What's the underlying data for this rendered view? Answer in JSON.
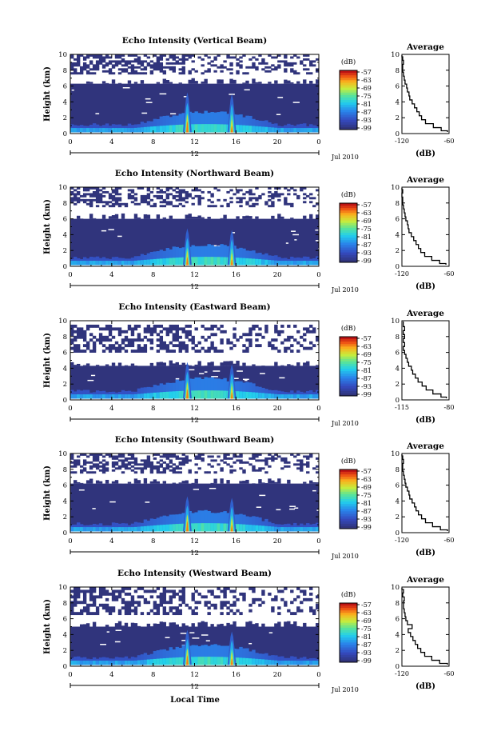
{
  "figure": {
    "xlabel": "Local Time"
  },
  "chart_data": [
    {
      "type": "heatmap",
      "title": "Echo Intensity (Vertical Beam)",
      "ylabel": "Height (km)",
      "ylim": [
        0,
        10
      ],
      "yticks": [
        "0",
        "2",
        "4",
        "6",
        "8",
        "10"
      ],
      "xlim": [
        0,
        24
      ],
      "xticks": [
        "0",
        "4",
        "8",
        "12",
        "16",
        "20",
        "0"
      ],
      "date_marker": "12",
      "date_label": "Jul 2010",
      "colorbar": {
        "unit": "(dB)",
        "ticks": [
          "-57",
          "-63",
          "-69",
          "-75",
          "-81",
          "-87",
          "-93",
          "-99"
        ]
      },
      "bursts": [
        {
          "time": 11.3,
          "top_km": 5.2,
          "core_km": 1.6
        },
        {
          "time": 15.6,
          "top_km": 5.0,
          "core_km": 1.0
        }
      ],
      "echo_top_km": 6.3,
      "upper_echo_km": [
        7.5,
        10.0
      ],
      "profile": {
        "title": "Average",
        "xlabel": "(dB)",
        "xlim": [
          -120,
          -60
        ],
        "xticks": [
          "-120",
          "-60"
        ],
        "ylim": [
          0,
          10
        ],
        "yticks": [
          "0",
          "2",
          "4",
          "6",
          "8",
          "10"
        ],
        "height_km": [
          0.2,
          0.5,
          1.0,
          1.5,
          2.0,
          2.5,
          3.0,
          3.5,
          4.0,
          4.5,
          5.0,
          5.5,
          6.0,
          6.5,
          7.0,
          7.5,
          8.0,
          8.5,
          9.0,
          9.5,
          9.9
        ],
        "value_db": [
          -62,
          -70,
          -80,
          -90,
          -95,
          -98,
          -101,
          -104,
          -107,
          -110,
          -111,
          -113,
          -114,
          -116,
          -117,
          -118,
          -119,
          -119,
          -118,
          -119,
          -120
        ]
      }
    },
    {
      "type": "heatmap",
      "title": "Echo Intensity (Northward Beam)",
      "ylabel": "Height (km)",
      "ylim": [
        0,
        10
      ],
      "yticks": [
        "0",
        "2",
        "4",
        "6",
        "8",
        "10"
      ],
      "xlim": [
        0,
        24
      ],
      "xticks": [
        "0",
        "4",
        "8",
        "12",
        "16",
        "20",
        "0"
      ],
      "date_marker": "12",
      "date_label": "Jul 2010",
      "colorbar": {
        "unit": "(dB)",
        "ticks": [
          "-57",
          "-63",
          "-69",
          "-75",
          "-81",
          "-87",
          "-93",
          "-99"
        ]
      },
      "bursts": [
        {
          "time": 11.3,
          "top_km": 4.8,
          "core_km": 1.2
        },
        {
          "time": 15.6,
          "top_km": 4.6,
          "core_km": 0.9
        }
      ],
      "echo_top_km": 6.0,
      "upper_echo_km": [
        7.5,
        10.0
      ],
      "profile": {
        "title": "Average",
        "xlabel": "(dB)",
        "xlim": [
          -120,
          -60
        ],
        "xticks": [
          "-120",
          "-60"
        ],
        "ylim": [
          0,
          10
        ],
        "yticks": [
          "0",
          "2",
          "4",
          "6",
          "8",
          "10"
        ],
        "height_km": [
          0.2,
          0.5,
          1.0,
          1.5,
          2.0,
          2.5,
          3.0,
          3.5,
          4.0,
          4.5,
          5.0,
          5.5,
          6.0,
          6.5,
          7.0,
          7.5,
          8.0,
          8.5,
          9.0,
          9.5,
          9.9
        ],
        "value_db": [
          -64,
          -72,
          -82,
          -91,
          -96,
          -99,
          -102,
          -105,
          -108,
          -111,
          -112,
          -113,
          -115,
          -116,
          -117,
          -118,
          -119,
          -119,
          -120,
          -119,
          -120
        ]
      }
    },
    {
      "type": "heatmap",
      "title": "Echo Intensity (Eastward Beam)",
      "ylabel": "Height (km)",
      "ylim": [
        0,
        10
      ],
      "yticks": [
        "0",
        "2",
        "4",
        "6",
        "8",
        "10"
      ],
      "xlim": [
        0,
        24
      ],
      "xticks": [
        "0",
        "4",
        "8",
        "12",
        "16",
        "20",
        "0"
      ],
      "date_marker": "12",
      "date_label": "Jul 2010",
      "colorbar": {
        "unit": "(dB)",
        "ticks": [
          "-57",
          "-63",
          "-69",
          "-75",
          "-81",
          "-87",
          "-93",
          "-99"
        ]
      },
      "bursts": [
        {
          "time": 11.3,
          "top_km": 4.8,
          "core_km": 1.4
        },
        {
          "time": 15.6,
          "top_km": 4.5,
          "core_km": 1.0
        }
      ],
      "echo_top_km": 4.3,
      "upper_echo_km": [
        6.0,
        9.5
      ],
      "profile": {
        "title": "Average",
        "xlabel": "(dB)",
        "xlim": [
          -115,
          -80
        ],
        "xticks": [
          "-115",
          "-80"
        ],
        "ylim": [
          0,
          10
        ],
        "yticks": [
          "0",
          "2",
          "4",
          "6",
          "8",
          "10"
        ],
        "height_km": [
          0.2,
          0.5,
          1.0,
          1.5,
          2.0,
          2.5,
          3.0,
          3.5,
          4.0,
          4.5,
          5.0,
          5.5,
          6.0,
          6.5,
          7.0,
          7.5,
          8.0,
          8.5,
          9.0,
          9.5,
          9.9
        ],
        "value_db": [
          -82,
          -86,
          -92,
          -97,
          -100,
          -103,
          -105,
          -107,
          -108,
          -110,
          -111,
          -112,
          -113,
          -114,
          -113,
          -114,
          -113,
          -114,
          -113,
          -114,
          -114
        ]
      }
    },
    {
      "type": "heatmap",
      "title": "Echo Intensity (Southward Beam)",
      "ylabel": "Height (km)",
      "ylim": [
        0,
        10
      ],
      "yticks": [
        "0",
        "2",
        "4",
        "6",
        "8",
        "10"
      ],
      "xlim": [
        0,
        24
      ],
      "xticks": [
        "0",
        "4",
        "8",
        "12",
        "16",
        "20",
        "0"
      ],
      "date_marker": "12",
      "date_label": "Jul 2010",
      "colorbar": {
        "unit": "(dB)",
        "ticks": [
          "-57",
          "-63",
          "-69",
          "-75",
          "-81",
          "-87",
          "-93",
          "-99"
        ]
      },
      "bursts": [
        {
          "time": 11.3,
          "top_km": 4.6,
          "core_km": 1.5
        },
        {
          "time": 15.6,
          "top_km": 4.4,
          "core_km": 1.0
        }
      ],
      "echo_top_km": 6.2,
      "upper_echo_km": [
        7.5,
        10.0
      ],
      "profile": {
        "title": "Average",
        "xlabel": "(dB)",
        "xlim": [
          -120,
          -60
        ],
        "xticks": [
          "-120",
          "-60"
        ],
        "ylim": [
          0,
          10
        ],
        "yticks": [
          "0",
          "2",
          "4",
          "6",
          "8",
          "10"
        ],
        "height_km": [
          0.2,
          0.5,
          1.0,
          1.5,
          2.0,
          2.5,
          3.0,
          3.5,
          4.0,
          4.5,
          5.0,
          5.5,
          6.0,
          6.5,
          7.0,
          7.5,
          8.0,
          8.5,
          9.0,
          9.5,
          9.9
        ],
        "value_db": [
          -62,
          -71,
          -81,
          -90,
          -95,
          -99,
          -102,
          -104,
          -107,
          -110,
          -111,
          -113,
          -115,
          -116,
          -117,
          -118,
          -119,
          -119,
          -118,
          -119,
          -120
        ]
      }
    },
    {
      "type": "heatmap",
      "title": "Echo Intensity (Westward Beam)",
      "ylabel": "Height (km)",
      "ylim": [
        0,
        10
      ],
      "yticks": [
        "0",
        "2",
        "4",
        "6",
        "8",
        "10"
      ],
      "xlim": [
        0,
        24
      ],
      "xticks": [
        "0",
        "4",
        "8",
        "12",
        "16",
        "20",
        "0"
      ],
      "date_marker": "12",
      "date_label": "Jul 2010",
      "colorbar": {
        "unit": "(dB)",
        "ticks": [
          "-57",
          "-63",
          "-69",
          "-75",
          "-81",
          "-87",
          "-93",
          "-99"
        ]
      },
      "bursts": [
        {
          "time": 11.3,
          "top_km": 4.6,
          "core_km": 1.4
        },
        {
          "time": 15.6,
          "top_km": 4.4,
          "core_km": 1.0
        }
      ],
      "echo_top_km": 5.0,
      "upper_echo_km": [
        6.5,
        10.0
      ],
      "profile": {
        "title": "Average",
        "xlabel": "(dB)",
        "xlim": [
          -120,
          -60
        ],
        "xticks": [
          "-120",
          "-60"
        ],
        "ylim": [
          0,
          10
        ],
        "yticks": [
          "0",
          "2",
          "4",
          "6",
          "8",
          "10"
        ],
        "height_km": [
          0.2,
          0.5,
          1.0,
          1.5,
          2.0,
          2.5,
          3.0,
          3.5,
          4.0,
          4.5,
          5.0,
          5.5,
          6.0,
          6.5,
          7.0,
          7.5,
          8.0,
          8.5,
          9.0,
          9.5,
          9.9
        ],
        "value_db": [
          -62,
          -72,
          -82,
          -91,
          -96,
          -100,
          -103,
          -106,
          -109,
          -112,
          -107,
          -113,
          -115,
          -116,
          -117,
          -118,
          -118,
          -117,
          -119,
          -118,
          -120
        ]
      }
    }
  ]
}
